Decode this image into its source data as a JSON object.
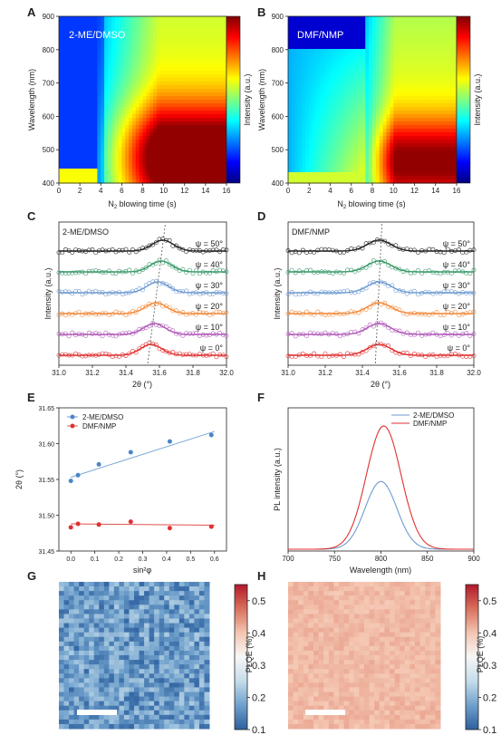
{
  "colors": {
    "jet": [
      "#00007f",
      "#0000ff",
      "#007fff",
      "#00ffff",
      "#7fff7f",
      "#ffff00",
      "#ff7f00",
      "#ff0000",
      "#7f0000"
    ],
    "series_black": "#222222",
    "series_green": "#3a9a6a",
    "series_blue": "#6f9bd1",
    "series_orange": "#f08a3c",
    "series_purple": "#b05ab8",
    "series_red": "#e03030",
    "rdbu": [
      "#2c5f9e",
      "#6fa0cc",
      "#c4dcea",
      "#f7f7f7",
      "#f4c6b1",
      "#d9705d",
      "#b2182b"
    ]
  },
  "chart_data": [
    {
      "panel": "A",
      "type": "heatmap",
      "label": "2-ME/DMSO",
      "xlabel_main": "N",
      "xlabel_sub": "2",
      "xlabel_rest": " blowing time (s)",
      "ylabel": "Wavelength (nm)",
      "colorbar_label": "Intensity (a.u.)",
      "xlim": [
        0,
        16
      ],
      "ylim": [
        400,
        900
      ],
      "xticks": [
        "0",
        "2",
        "4",
        "6",
        "8",
        "10",
        "12",
        "14",
        "16"
      ],
      "yticks": [
        "400",
        "500",
        "600",
        "700",
        "800",
        "900"
      ],
      "onset_time": 3.6,
      "peak_wavelength": 480
    },
    {
      "panel": "B",
      "type": "heatmap",
      "label": "DMF/NMP",
      "xlabel_main": "N",
      "xlabel_sub": "2",
      "xlabel_rest": " blowing time (s)",
      "ylabel": "Wavelength (nm)",
      "colorbar_label": "Intensity (a.u.)",
      "xlim": [
        0,
        16
      ],
      "ylim": [
        400,
        900
      ],
      "xticks": [
        "0",
        "2",
        "4",
        "6",
        "8",
        "10",
        "12",
        "14",
        "16"
      ],
      "yticks": [
        "400",
        "500",
        "600",
        "700",
        "800",
        "900"
      ],
      "onset_time": 7.2,
      "peak_wavelength": 470
    },
    {
      "panel": "C",
      "type": "line",
      "label": "2-ME/DMSO",
      "xlabel": "2θ (°)",
      "ylabel": "Intensity (a.u.)",
      "xlim": [
        31.0,
        32.0
      ],
      "xticks": [
        "31.0",
        "31.2",
        "31.4",
        "31.6",
        "31.8",
        "32.0"
      ],
      "series": [
        {
          "name": "ψ = 50°",
          "peak": 31.62
        },
        {
          "name": "ψ = 40°",
          "peak": 31.61
        },
        {
          "name": "ψ = 30°",
          "peak": 31.59
        },
        {
          "name": "ψ = 20°",
          "peak": 31.58
        },
        {
          "name": "ψ = 10°",
          "peak": 31.57
        },
        {
          "name": "ψ = 0°",
          "peak": 31.55
        }
      ]
    },
    {
      "panel": "D",
      "type": "line",
      "label": "DMF/NMP",
      "xlabel": "2θ (°)",
      "ylabel": "Intensity (a.u.)",
      "xlim": [
        31.0,
        32.0
      ],
      "xticks": [
        "31.0",
        "31.2",
        "31.4",
        "31.6",
        "31.8",
        "32.0"
      ],
      "series": [
        {
          "name": "ψ = 50°",
          "peak": 31.49
        },
        {
          "name": "ψ = 40°",
          "peak": 31.49
        },
        {
          "name": "ψ = 30°",
          "peak": 31.49
        },
        {
          "name": "ψ = 20°",
          "peak": 31.49
        },
        {
          "name": "ψ = 10°",
          "peak": 31.49
        },
        {
          "name": "ψ = 0°",
          "peak": 31.49
        }
      ]
    },
    {
      "panel": "E",
      "type": "scatter",
      "xlabel": "sin²φ",
      "ylabel": "2θ (°)",
      "xlim": [
        -0.05,
        0.65
      ],
      "ylim": [
        31.45,
        31.65
      ],
      "xticks": [
        "0.0",
        "0.1",
        "0.2",
        "0.3",
        "0.4",
        "0.5",
        "0.6"
      ],
      "yticks": [
        "31.45",
        "31.50",
        "31.55",
        "31.60",
        "31.65"
      ],
      "series": [
        {
          "name": "2-ME/DMSO",
          "x": [
            0.0,
            0.03,
            0.117,
            0.25,
            0.413,
            0.587
          ],
          "y": [
            31.548,
            31.556,
            31.571,
            31.588,
            31.603,
            31.612
          ],
          "fit": [
            31.553,
            31.617
          ]
        },
        {
          "name": "DMF/NMP",
          "x": [
            0.0,
            0.03,
            0.117,
            0.25,
            0.413,
            0.587
          ],
          "y": [
            31.483,
            31.488,
            31.487,
            31.491,
            31.482,
            31.484
          ],
          "fit": [
            31.488,
            31.486
          ]
        }
      ]
    },
    {
      "panel": "F",
      "type": "line",
      "xlabel": "Wavelength (nm)",
      "ylabel": "PL intensity (a.u.)",
      "xlim": [
        700,
        900
      ],
      "xticks": [
        "700",
        "750",
        "800",
        "850",
        "900"
      ],
      "series": [
        {
          "name": "2-ME/DMSO",
          "peak": 800,
          "amplitude": 0.55,
          "width": 22
        },
        {
          "name": "DMF/NMP",
          "peak": 803,
          "amplitude": 1.0,
          "width": 24
        }
      ]
    },
    {
      "panel": "G",
      "type": "heatmap",
      "colorbar_label": "PLQE (%)",
      "cbar_ticks": [
        "0.1",
        "0.2",
        "0.3",
        "0.4",
        "0.5"
      ],
      "clim": [
        0.1,
        0.55
      ],
      "mean_value": 0.17
    },
    {
      "panel": "H",
      "type": "heatmap",
      "colorbar_label": "PLQE (%)",
      "cbar_ticks": [
        "0.1",
        "0.2",
        "0.3",
        "0.4",
        "0.5"
      ],
      "clim": [
        0.1,
        0.55
      ],
      "mean_value": 0.41
    }
  ]
}
